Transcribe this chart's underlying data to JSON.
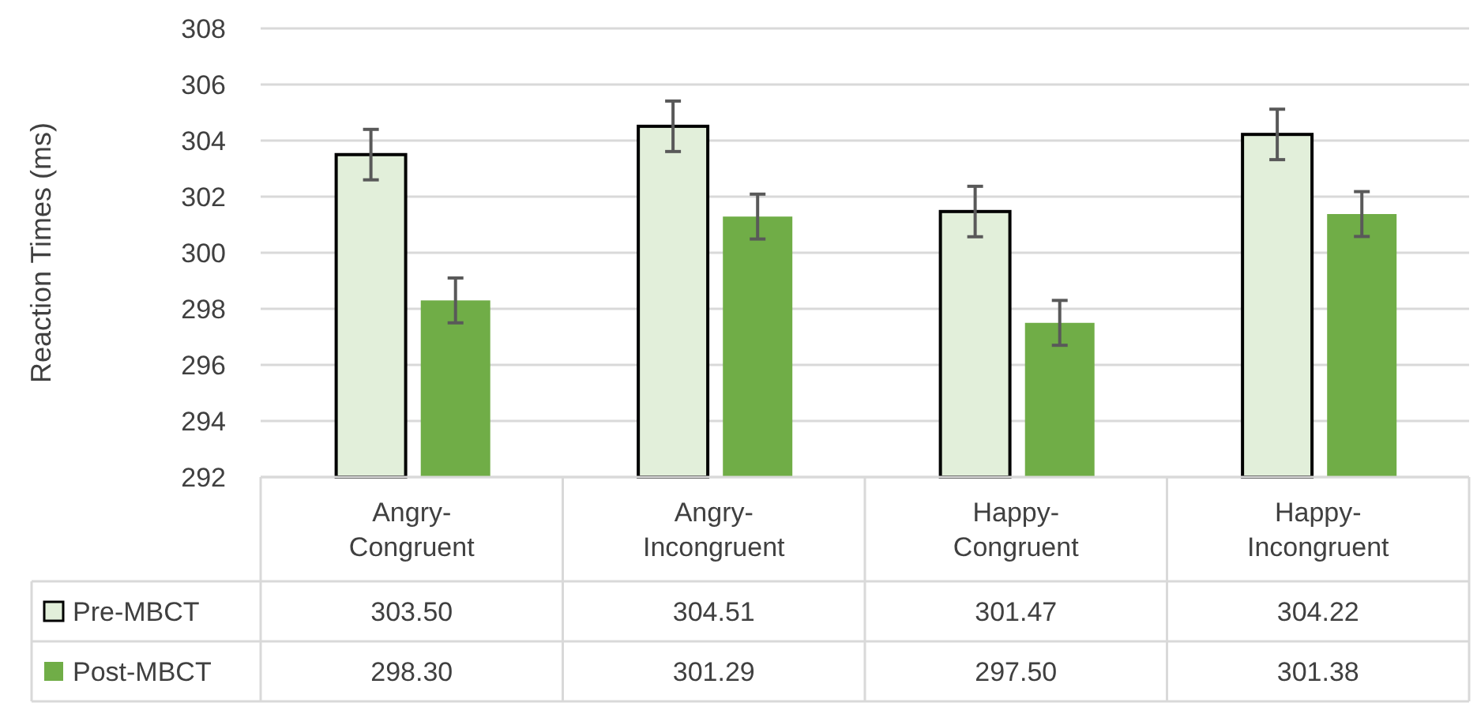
{
  "chart_data": {
    "type": "bar",
    "ylabel": "Reaction Times (ms)",
    "categories": [
      "Angry-Congruent",
      "Angry-Incongruent",
      "Happy-Congruent",
      "Happy-Incongruent"
    ],
    "series": [
      {
        "name": "Pre-MBCT",
        "color": "#e2efda",
        "values": [
          303.5,
          304.51,
          301.47,
          304.22
        ],
        "value_labels": [
          "303.50",
          "304.51",
          "301.47",
          "304.22"
        ],
        "errors": [
          0.9,
          0.9,
          0.9,
          0.9
        ]
      },
      {
        "name": "Post-MBCT",
        "color": "#70ad47",
        "values": [
          298.3,
          301.29,
          297.5,
          301.38
        ],
        "value_labels": [
          "298.30",
          "301.29",
          "297.50",
          "301.38"
        ],
        "errors": [
          0.8,
          0.8,
          0.8,
          0.8
        ]
      }
    ],
    "ylim": [
      292,
      308
    ],
    "yticks": [
      292,
      294,
      296,
      298,
      300,
      302,
      304,
      306,
      308
    ],
    "grid": "y",
    "legend": "bottom left"
  }
}
